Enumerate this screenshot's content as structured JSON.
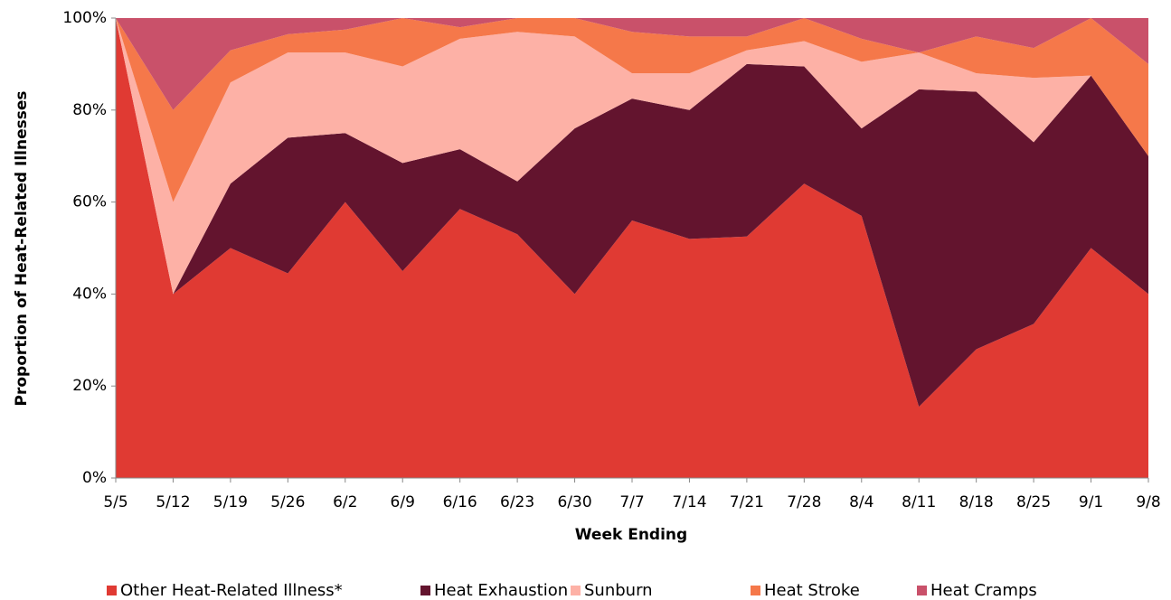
{
  "chart_data": {
    "type": "stacked_area",
    "x_label": "Week Ending",
    "y_label": "Proportion of Heat-Related Illnesses",
    "categories": [
      "5/5",
      "5/12",
      "5/19",
      "5/26",
      "6/2",
      "6/9",
      "6/16",
      "6/23",
      "6/30",
      "7/7",
      "7/14",
      "7/21",
      "7/28",
      "8/4",
      "8/11",
      "8/18",
      "8/25",
      "9/1",
      "9/8"
    ],
    "series": [
      {
        "name": "Other Heat-Related Illness*",
        "color": "#e03a33",
        "values": [
          100,
          40,
          50,
          44.5,
          60,
          45,
          58.5,
          53,
          40,
          56,
          52,
          52.5,
          64,
          57,
          15.5,
          28,
          33.5,
          50,
          40
        ]
      },
      {
        "name": "Heat Exhaustion",
        "color": "#63142e",
        "values": [
          0,
          0,
          14,
          29.5,
          15,
          23.5,
          13,
          11.5,
          36,
          26.5,
          28,
          37.5,
          25.5,
          19,
          69,
          56,
          39.5,
          37.5,
          30
        ]
      },
      {
        "name": "Sunburn",
        "color": "#fdb1a6",
        "values": [
          0,
          20,
          22,
          18.5,
          17.5,
          21,
          24,
          32.5,
          20,
          5.5,
          8,
          3,
          5.5,
          14.5,
          8,
          4,
          14,
          0,
          0
        ]
      },
      {
        "name": "Heat Stroke",
        "color": "#f5784a",
        "values": [
          0,
          20,
          7,
          4,
          5,
          10.5,
          2.5,
          3,
          4,
          9,
          8,
          3,
          5,
          5,
          0,
          8,
          6.5,
          12.5,
          20
        ]
      },
      {
        "name": "Heat Cramps",
        "color": "#c9516a",
        "values": [
          0,
          20,
          7,
          3.5,
          2.5,
          0,
          2,
          0,
          0,
          3,
          4,
          4,
          0,
          4.5,
          7.5,
          4,
          6.5,
          0,
          10
        ]
      }
    ],
    "ylim": [
      0,
      100
    ],
    "yticks": [
      {
        "value": 0,
        "label": "0%"
      },
      {
        "value": 20,
        "label": "20%"
      },
      {
        "value": 40,
        "label": "40%"
      },
      {
        "value": 60,
        "label": "60%"
      },
      {
        "value": 80,
        "label": "80%"
      },
      {
        "value": 100,
        "label": "100%"
      }
    ],
    "legend": "bottom"
  }
}
